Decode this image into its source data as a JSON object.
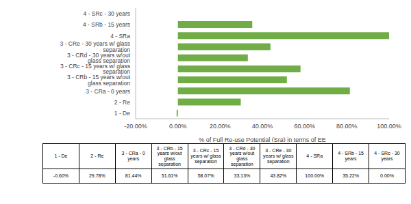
{
  "chart_data": {
    "type": "bar",
    "orientation": "horizontal",
    "x_label": "% of Full Re-use Potential (Sra) in terms of EE",
    "categories": [
      "1 - De",
      "2 - Re",
      "3 - CRa - 0 years",
      "3 - CRb - 15 years w/out glass separation",
      "3 - CRc - 15 years w/ glass separation",
      "3 - CRd - 30 years w/out glass separation",
      "3 - CRe - 30 years w/ glass separation",
      "4 - SRa",
      "4 - SRb - 15 years",
      "4 - SRc - 30 years"
    ],
    "values": [
      -0.6,
      29.78,
      81.44,
      51.61,
      58.07,
      33.13,
      43.82,
      100,
      35.22,
      0.0
    ],
    "value_labels": [
      "-0.60%",
      "29.78%",
      "81.44%",
      "51.61%",
      "58.07%",
      "33.13%",
      "43.82%",
      "100.00%",
      "35.22%",
      "0.00%"
    ],
    "color": "#70ad47",
    "xlim": [
      -20,
      100
    ],
    "xticks": [
      {
        "value": -20,
        "label": "-20.00%"
      },
      {
        "value": 0,
        "label": "0.00%"
      },
      {
        "value": 20,
        "label": "20.00%"
      },
      {
        "value": 40,
        "label": "40.00%"
      },
      {
        "value": 60,
        "label": "60.00%"
      },
      {
        "value": 80,
        "label": "80.00%"
      },
      {
        "value": 100,
        "label": "100.00%"
      }
    ],
    "grid": false,
    "data_labels": false
  }
}
